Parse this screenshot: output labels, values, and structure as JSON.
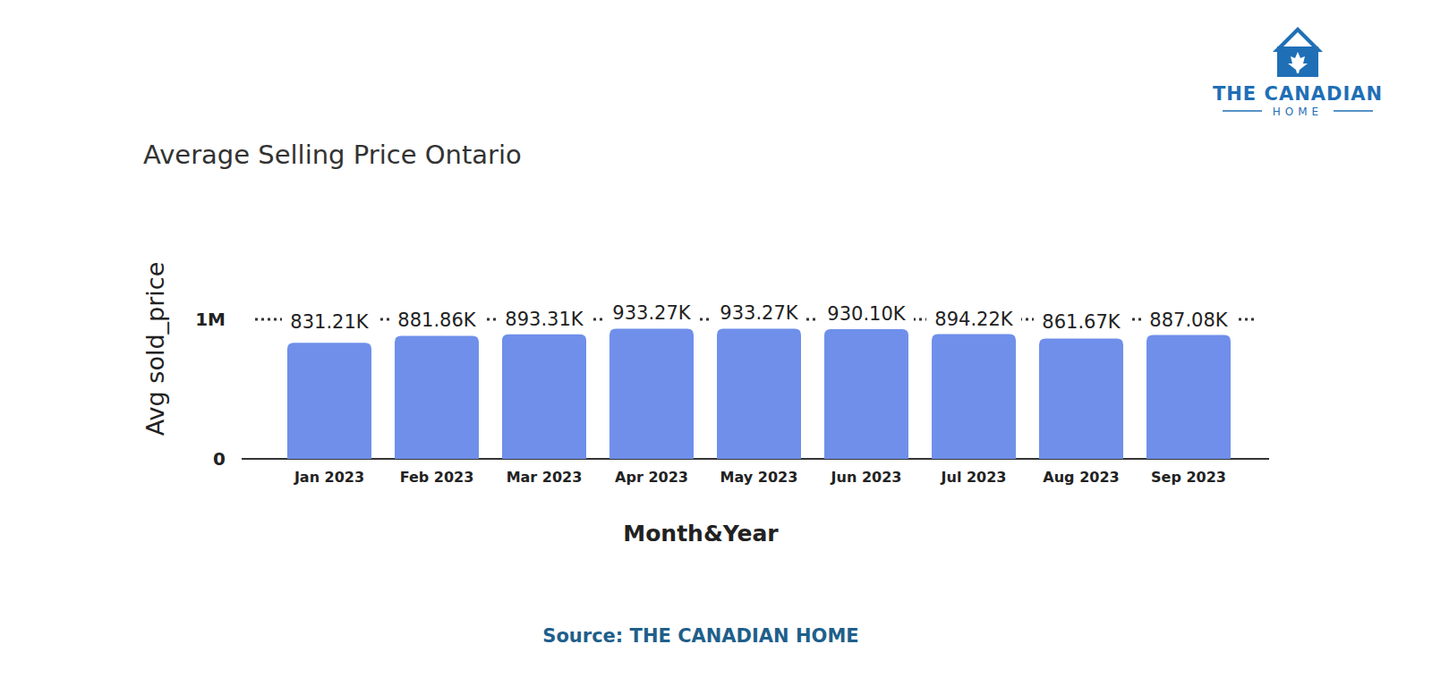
{
  "chart_data": {
    "type": "bar",
    "title": "Average Selling Price Ontario",
    "x_label": "Month&Year",
    "y_label": "Avg sold_price",
    "categories": [
      "Jan 2023",
      "Feb 2023",
      "Mar 2023",
      "Apr 2023",
      "May 2023",
      "Jun 2023",
      "Jul 2023",
      "Aug 2023",
      "Sep 2023"
    ],
    "values": [
      831210,
      881860,
      893310,
      933270,
      933270,
      930100,
      894220,
      861670,
      887080
    ],
    "value_labels": [
      "831.21K",
      "881.86K",
      "893.31K",
      "933.27K",
      "933.27K",
      "930.10K",
      "894.22K",
      "861.67K",
      "887.08K"
    ],
    "color": "#6f8fea",
    "ylim": [
      0,
      1000000
    ],
    "yticks": [
      0,
      {
        "value": 1000000,
        "label": "1M"
      }
    ],
    "grid": true,
    "data_labels": true,
    "logo_text": [
      "THE CANADIAN",
      "HOME"
    ],
    "source": "Source: THE CANADIAN HOME"
  }
}
